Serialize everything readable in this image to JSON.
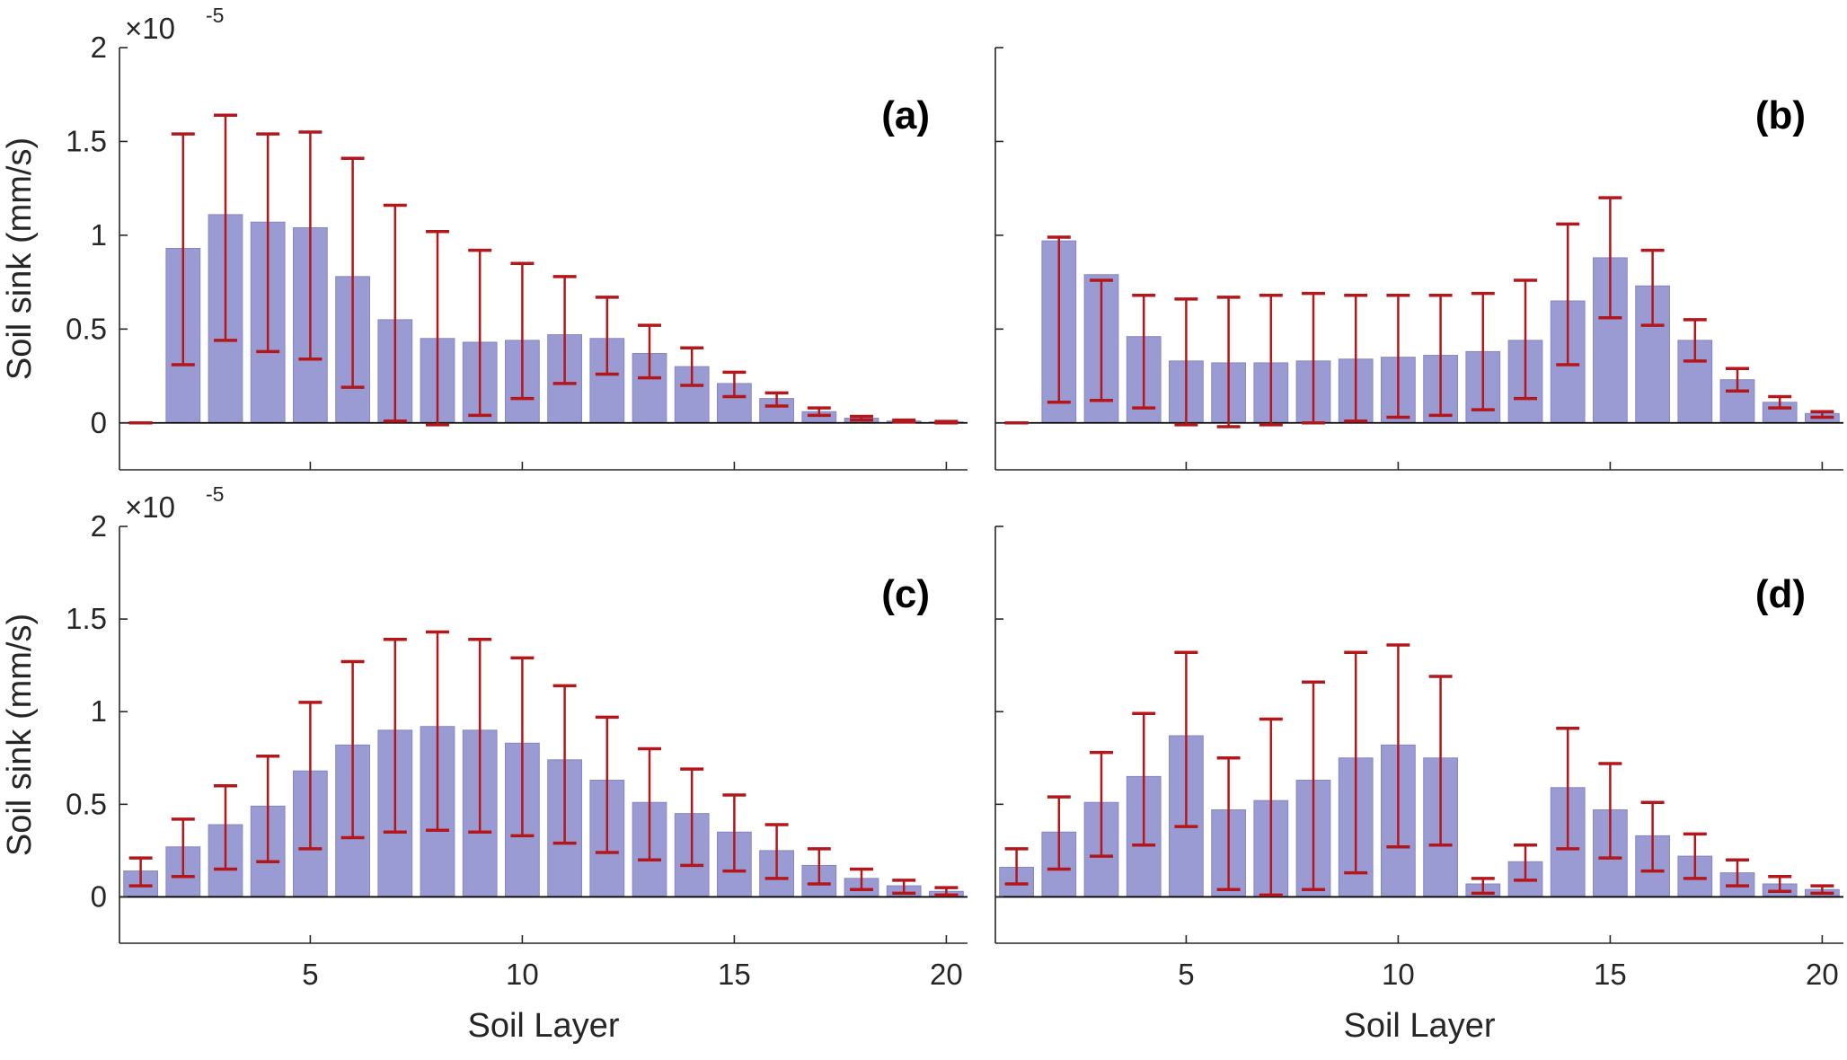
{
  "colors": {
    "bar": "#9b9bd3",
    "bar_edge": "#8585c6",
    "error": "#b2181b",
    "axis": "#262626"
  },
  "chart_data": [
    {
      "type": "bar",
      "panel_label": "(a)",
      "xlabel": "",
      "ylabel": "Soil sink (mm/s)",
      "exponent_label": "×10",
      "exponent_power": "-5",
      "xlim": [
        0.5,
        20.5
      ],
      "ylim": [
        -0.25,
        2
      ],
      "y_scale": 1e-05,
      "xticks": [
        5,
        10,
        15,
        20
      ],
      "yticks": [
        0,
        0.5,
        1,
        1.5,
        2
      ],
      "ytick_labels": [
        "0",
        "0.5",
        "1",
        "1.5",
        "2"
      ],
      "x": [
        1,
        2,
        3,
        4,
        5,
        6,
        7,
        8,
        9,
        10,
        11,
        12,
        13,
        14,
        15,
        16,
        17,
        18,
        19,
        20
      ],
      "values": [
        0.0,
        0.93,
        1.11,
        1.07,
        1.04,
        0.78,
        0.55,
        0.45,
        0.43,
        0.44,
        0.47,
        0.45,
        0.37,
        0.3,
        0.21,
        0.13,
        0.06,
        0.025,
        0.01,
        0.005
      ],
      "err_low": [
        0.0,
        0.31,
        0.44,
        0.38,
        0.34,
        0.19,
        0.01,
        -0.01,
        0.04,
        0.13,
        0.21,
        0.26,
        0.24,
        0.2,
        0.14,
        0.09,
        0.04,
        0.015,
        0.005,
        0.0
      ],
      "err_high": [
        0.0,
        1.54,
        1.64,
        1.54,
        1.55,
        1.41,
        1.16,
        1.02,
        0.92,
        0.85,
        0.78,
        0.67,
        0.52,
        0.4,
        0.27,
        0.16,
        0.08,
        0.035,
        0.015,
        0.008
      ]
    },
    {
      "type": "bar",
      "panel_label": "(b)",
      "xlabel": "",
      "ylabel": "",
      "xlim": [
        0.5,
        20.5
      ],
      "ylim": [
        -0.25,
        2
      ],
      "y_scale": 1e-05,
      "xticks": [
        5,
        10,
        15,
        20
      ],
      "yticks": [
        0,
        0.5,
        1,
        1.5,
        2
      ],
      "x": [
        1,
        2,
        3,
        4,
        5,
        6,
        7,
        8,
        9,
        10,
        11,
        12,
        13,
        14,
        15,
        16,
        17,
        18,
        19,
        20
      ],
      "values": [
        0.0,
        0.97,
        0.79,
        0.46,
        0.33,
        0.32,
        0.32,
        0.33,
        0.34,
        0.35,
        0.36,
        0.38,
        0.44,
        0.65,
        0.88,
        0.73,
        0.44,
        0.23,
        0.11,
        0.05
      ],
      "err_low": [
        0.0,
        0.11,
        0.12,
        0.08,
        -0.01,
        -0.02,
        -0.01,
        0.0,
        0.01,
        0.03,
        0.04,
        0.07,
        0.13,
        0.31,
        0.56,
        0.52,
        0.33,
        0.17,
        0.08,
        0.03
      ],
      "err_high": [
        0.0,
        0.99,
        0.76,
        0.68,
        0.66,
        0.67,
        0.68,
        0.69,
        0.68,
        0.68,
        0.68,
        0.69,
        0.76,
        1.06,
        1.2,
        0.92,
        0.55,
        0.29,
        0.14,
        0.06
      ]
    },
    {
      "type": "bar",
      "panel_label": "(c)",
      "xlabel": "Soil Layer",
      "ylabel": "Soil sink (mm/s)",
      "exponent_label": "×10",
      "exponent_power": "-5",
      "xlim": [
        0.5,
        20.5
      ],
      "ylim": [
        -0.25,
        2
      ],
      "y_scale": 1e-05,
      "xticks": [
        5,
        10,
        15,
        20
      ],
      "xtick_labels": [
        "5",
        "10",
        "15",
        "20"
      ],
      "yticks": [
        0,
        0.5,
        1,
        1.5,
        2
      ],
      "ytick_labels": [
        "0",
        "0.5",
        "1",
        "1.5",
        "2"
      ],
      "x": [
        1,
        2,
        3,
        4,
        5,
        6,
        7,
        8,
        9,
        10,
        11,
        12,
        13,
        14,
        15,
        16,
        17,
        18,
        19,
        20
      ],
      "values": [
        0.14,
        0.27,
        0.39,
        0.49,
        0.68,
        0.82,
        0.9,
        0.92,
        0.9,
        0.83,
        0.74,
        0.63,
        0.51,
        0.45,
        0.35,
        0.25,
        0.17,
        0.1,
        0.06,
        0.03
      ],
      "err_low": [
        0.06,
        0.11,
        0.15,
        0.19,
        0.26,
        0.32,
        0.35,
        0.36,
        0.35,
        0.33,
        0.29,
        0.24,
        0.2,
        0.17,
        0.14,
        0.1,
        0.07,
        0.04,
        0.02,
        0.01
      ],
      "err_high": [
        0.21,
        0.42,
        0.6,
        0.76,
        1.05,
        1.27,
        1.39,
        1.43,
        1.39,
        1.29,
        1.14,
        0.97,
        0.8,
        0.69,
        0.55,
        0.39,
        0.26,
        0.15,
        0.09,
        0.05
      ]
    },
    {
      "type": "bar",
      "panel_label": "(d)",
      "xlabel": "Soil Layer",
      "ylabel": "",
      "xlim": [
        0.5,
        20.5
      ],
      "ylim": [
        -0.25,
        2
      ],
      "y_scale": 1e-05,
      "xticks": [
        5,
        10,
        15,
        20
      ],
      "xtick_labels": [
        "5",
        "10",
        "15",
        "20"
      ],
      "yticks": [
        0,
        0.5,
        1,
        1.5,
        2
      ],
      "x": [
        1,
        2,
        3,
        4,
        5,
        6,
        7,
        8,
        9,
        10,
        11,
        12,
        13,
        14,
        15,
        16,
        17,
        18,
        19,
        20
      ],
      "values": [
        0.16,
        0.35,
        0.51,
        0.65,
        0.87,
        0.47,
        0.52,
        0.63,
        0.75,
        0.82,
        0.75,
        0.07,
        0.19,
        0.59,
        0.47,
        0.33,
        0.22,
        0.13,
        0.07,
        0.04
      ],
      "err_low": [
        0.07,
        0.15,
        0.22,
        0.28,
        0.38,
        0.04,
        0.01,
        0.04,
        0.13,
        0.27,
        0.28,
        0.02,
        0.09,
        0.26,
        0.21,
        0.14,
        0.1,
        0.06,
        0.03,
        0.02
      ],
      "err_high": [
        0.26,
        0.54,
        0.78,
        0.99,
        1.32,
        0.75,
        0.96,
        1.16,
        1.32,
        1.36,
        1.19,
        0.1,
        0.28,
        0.91,
        0.72,
        0.51,
        0.34,
        0.2,
        0.11,
        0.06
      ]
    }
  ]
}
